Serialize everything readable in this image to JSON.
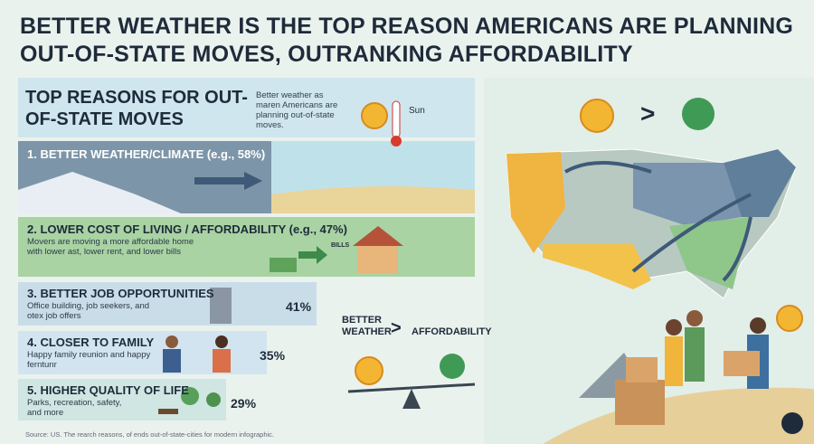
{
  "header": {
    "title": "BETTER WEATHER IS THE TOP REASON AMERICANS ARE PLANNING OUT-OF-STATE MOVES, OUTRANKING AFFORDABILITY"
  },
  "panel": {
    "title": "TOP REASONS FOR OUT-OF-STATE MOVES",
    "intro": "Better weather as maren Americans are planning out-of-state moves.",
    "sun_label": "Sun"
  },
  "reasons": [
    {
      "title": "1. BETTER WEATHER/CLIMATE (e.g., 58%)"
    },
    {
      "title": "2. LOWER COST OF LIVING / AFFORDABILITY (e.g., 47%)",
      "description": "Movers are moving a more affordable home with lower ast, lower rent, and lower bills",
      "bills_label": "BILLS"
    },
    {
      "title": "3. BETTER JOB OPPORTUNITIES",
      "description": "Office building, job seekers, and otex job offers",
      "percent": "41%"
    },
    {
      "title": "4. CLOSER TO FAMILY",
      "description": "Happy family reunion and happy ferntunr",
      "percent": "35%"
    },
    {
      "title": "5. HIGHER QUALITY OF LIFE",
      "description": "Parks, recreation, safety, and more",
      "percent": "29%"
    }
  ],
  "comparison": {
    "left": "BETTER WEATHER",
    "symbol": ">",
    "right": "AFFORDABILITY"
  },
  "map": {
    "symbol": ">"
  },
  "footer": {
    "source": "Source: US. The rearch reasons, of ends out-of-state-cities for modern infographic."
  }
}
